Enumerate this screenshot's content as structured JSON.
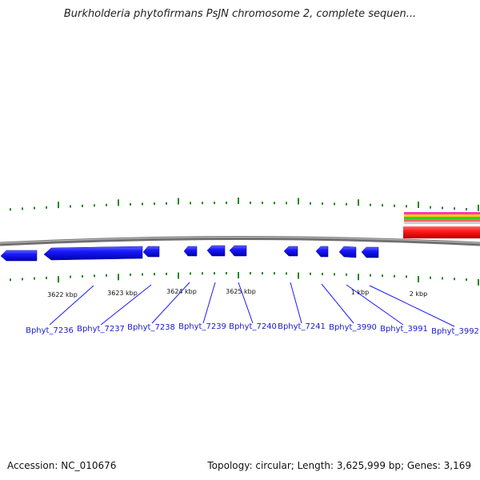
{
  "title": "Burkholderia phytofirmans PsJN chromosome 2, complete sequen...",
  "footer": {
    "accession": "Accession: NC_010676",
    "summary": "Topology: circular; Length: 3,625,999 bp; Genes: 3,169"
  },
  "colors": {
    "backbone": "#808080",
    "gene": "#1a1aff",
    "tick": "#1a8a1a",
    "label": "#1a1acc",
    "feature_red": "#ff1a1a"
  },
  "scale_labels": [
    "3622 kbp",
    "3623 kbp",
    "3624 kbp",
    "3625 kbp",
    "1 kbp",
    "2 kbp"
  ],
  "genes": [
    "Bphyt_7236",
    "Bphyt_7237",
    "Bphyt_7238",
    "Bphyt_7239",
    "Bphyt_7240",
    "Bphyt_7241",
    "Bphyt_3990",
    "Bphyt_3991",
    "Bphyt_3992"
  ],
  "overlay_track_colors": [
    "#ff33cc",
    "#ffcc00",
    "#33cc33",
    "#ff6666",
    "#cccccc"
  ]
}
